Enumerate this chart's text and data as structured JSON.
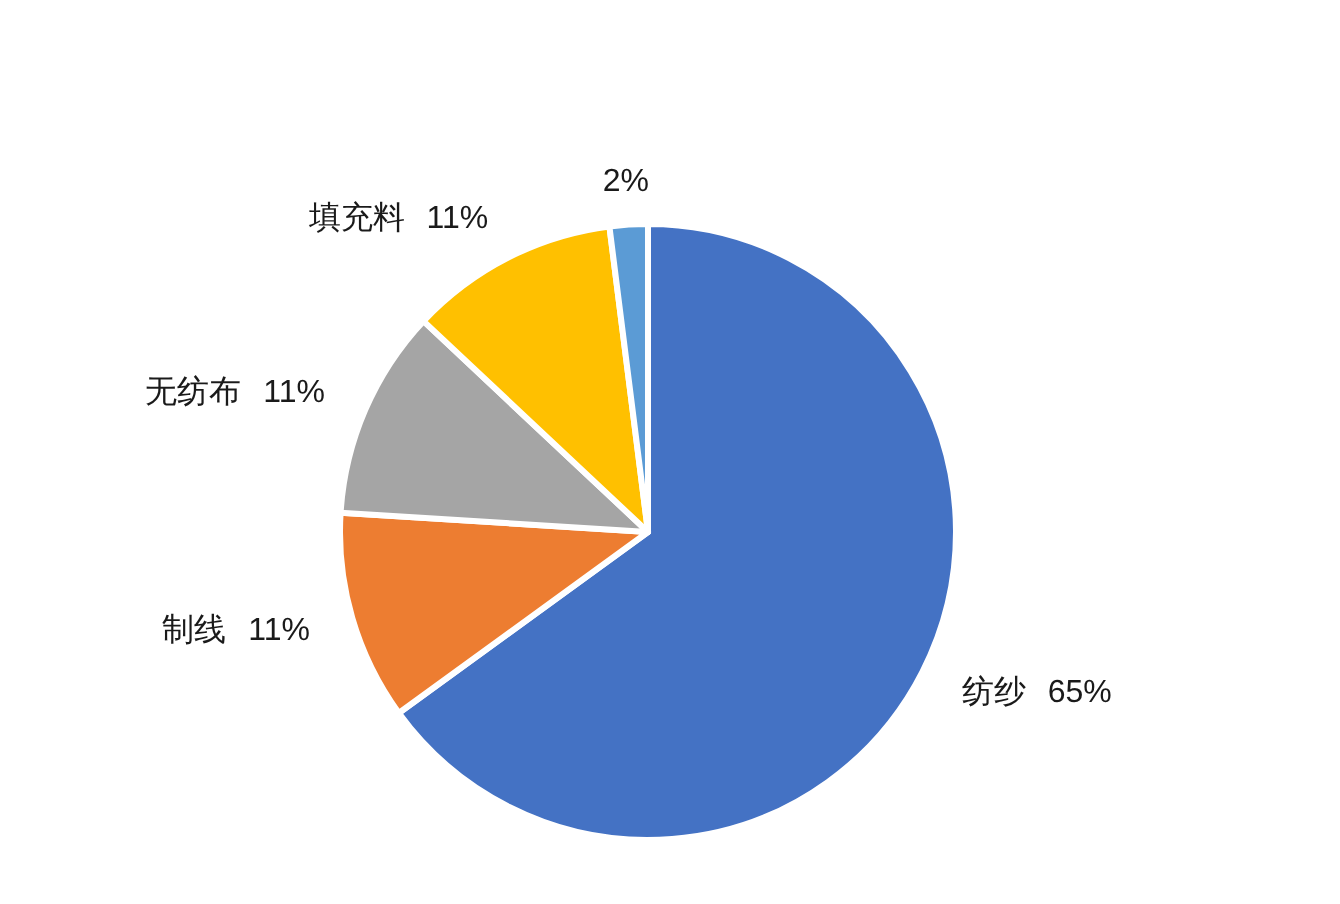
{
  "chart_data": {
    "type": "pie",
    "categories": [
      "纺纱",
      "制线",
      "无纺布",
      "填充料",
      null
    ],
    "values": [
      65,
      11,
      11,
      11,
      2
    ],
    "value_labels": [
      "65%",
      "11%",
      "11%",
      "11%",
      "2%"
    ],
    "colors": [
      "#4472c4",
      "#ed7d31",
      "#a5a5a5",
      "#ffc000",
      "#5b9bd5"
    ]
  }
}
